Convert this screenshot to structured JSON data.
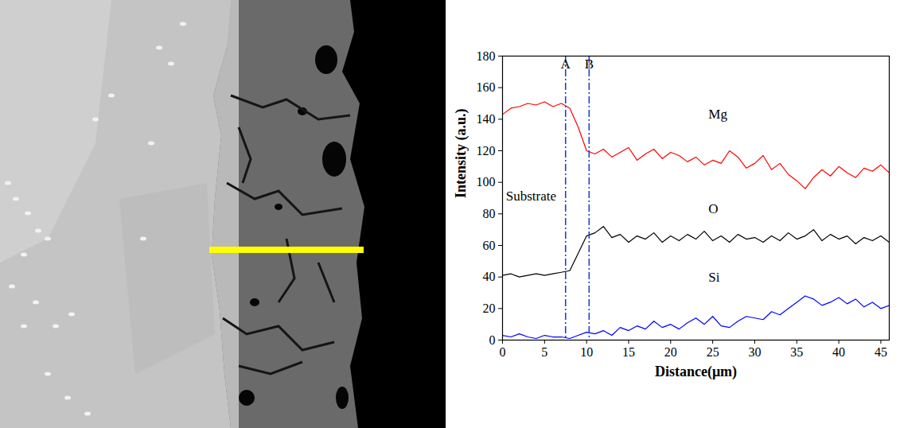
{
  "chart_data": {
    "type": "line",
    "x_label": "Distance(μm)",
    "y_label": "Intensity (a.u.)",
    "x": [
      0,
      1,
      2,
      3,
      4,
      5,
      6,
      7,
      8,
      9,
      10,
      11,
      12,
      13,
      14,
      15,
      16,
      17,
      18,
      19,
      20,
      21,
      22,
      23,
      24,
      25,
      26,
      27,
      28,
      29,
      30,
      31,
      32,
      33,
      34,
      35,
      36,
      37,
      38,
      39,
      40,
      41,
      42,
      43,
      44,
      45,
      46
    ],
    "series": [
      {
        "name": "Mg",
        "color": "#ff0000",
        "label_x": 24.5,
        "label_y": 143,
        "values": [
          143,
          147,
          148,
          150,
          149,
          151,
          148,
          150,
          147,
          135,
          120,
          118,
          121,
          116,
          119,
          122,
          114,
          118,
          121,
          115,
          119,
          117,
          113,
          116,
          111,
          114,
          112,
          120,
          116,
          109,
          112,
          117,
          108,
          112,
          105,
          101,
          96,
          103,
          108,
          104,
          110,
          106,
          103,
          109,
          107,
          111,
          106
        ]
      },
      {
        "name": "O",
        "color": "#000000",
        "label_x": 24.5,
        "label_y": 83,
        "values": [
          41,
          42,
          40,
          41,
          42,
          41,
          42,
          43,
          44,
          55,
          66,
          68,
          72,
          65,
          67,
          62,
          66,
          64,
          68,
          62,
          66,
          63,
          67,
          64,
          69,
          63,
          66,
          62,
          67,
          64,
          65,
          62,
          66,
          63,
          68,
          64,
          66,
          70,
          63,
          67,
          64,
          66,
          61,
          65,
          63,
          66,
          62
        ]
      },
      {
        "name": "Si",
        "color": "#0000ff",
        "label_x": 24.5,
        "label_y": 40,
        "values": [
          3,
          2,
          4,
          2,
          1,
          3,
          2,
          2,
          1,
          3,
          5,
          4,
          6,
          3,
          8,
          6,
          9,
          7,
          12,
          8,
          10,
          7,
          11,
          14,
          10,
          15,
          9,
          8,
          12,
          15,
          14,
          13,
          18,
          16,
          20,
          24,
          28,
          26,
          22,
          24,
          27,
          23,
          26,
          21,
          24,
          20,
          22
        ]
      }
    ],
    "markers": [
      {
        "label": "A",
        "x": 7.5,
        "label_y": 172,
        "color": "#2040d0",
        "line_style": "dashdot"
      },
      {
        "label": "B",
        "x": 10.3,
        "label_y": 172,
        "color": "#2040d0",
        "line_style": "dashdot"
      }
    ],
    "annotations": [
      {
        "text": "Substrate",
        "x": 0.4,
        "y": 91
      }
    ],
    "xlim": [
      0,
      46
    ],
    "xticks": [
      0,
      5,
      10,
      15,
      20,
      25,
      30,
      35,
      40,
      45
    ],
    "ylim": [
      0,
      180
    ],
    "yticks": [
      0,
      20,
      40,
      60,
      80,
      100,
      120,
      140,
      160,
      180
    ],
    "grid": false
  }
}
